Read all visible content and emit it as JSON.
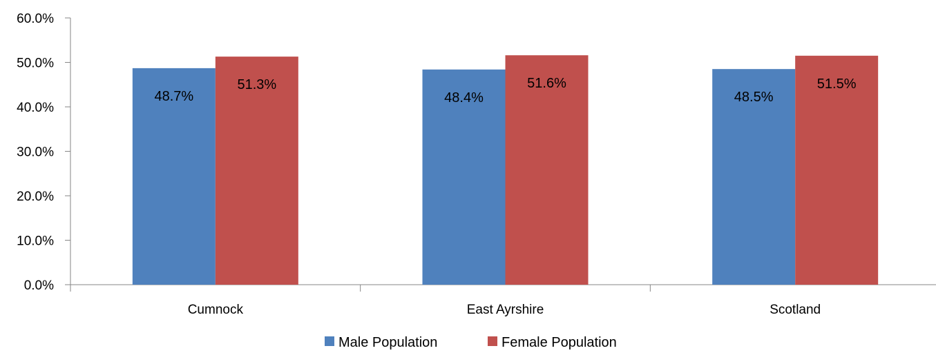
{
  "chart_data": {
    "type": "bar",
    "title": "",
    "xlabel": "",
    "ylabel": "",
    "categories": [
      "Cumnock",
      "East Ayrshire",
      "Scotland"
    ],
    "series": [
      {
        "name": "Male Population",
        "values": [
          48.7,
          48.4,
          48.5
        ],
        "labels": [
          "48.7%",
          "48.4%",
          "48.5%"
        ],
        "color": "#4F81BD"
      },
      {
        "name": "Female Population",
        "values": [
          51.3,
          51.6,
          51.5
        ],
        "labels": [
          "51.3%",
          "51.6%",
          "51.5%"
        ],
        "color": "#C0504D"
      }
    ],
    "ylim": [
      0,
      60
    ],
    "y_ticks": [
      0,
      10,
      20,
      30,
      40,
      50,
      60
    ],
    "y_tick_labels": [
      "0.0%",
      "10.0%",
      "20.0%",
      "30.0%",
      "40.0%",
      "50.0%",
      "60.0%"
    ],
    "grid": false,
    "legend_position": "bottom",
    "axis_color": "#868686"
  }
}
